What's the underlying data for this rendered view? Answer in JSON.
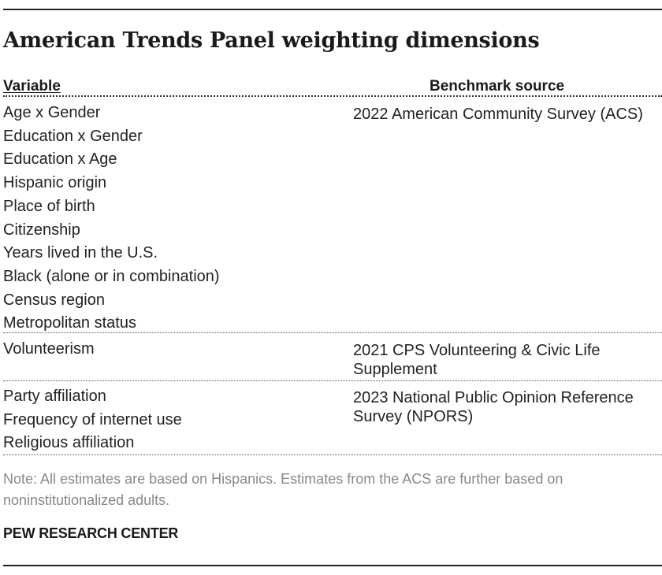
{
  "title": "American Trends Panel weighting dimensions",
  "headers": {
    "variable": "Variable",
    "source": "Benchmark source"
  },
  "groups": [
    {
      "variables": [
        "Age x Gender",
        "Education x Gender",
        "Education x Age",
        "Hispanic origin",
        "Place of birth",
        "Citizenship",
        "Years lived in the U.S.",
        "Black (alone or in combination)",
        "Census region",
        "Metropolitan status"
      ],
      "source": "2022 American Community Survey (ACS)"
    },
    {
      "variables": [
        "Volunteerism"
      ],
      "source": "2021 CPS Volunteering & Civic Life Supplement"
    },
    {
      "variables": [
        "Party affiliation",
        "Frequency of internet use",
        "Religious affiliation"
      ],
      "source": "2023 National Public Opinion Reference Survey (NPORS)"
    }
  ],
  "note": "Note: All estimates are based on Hispanics. Estimates from the ACS are further based on noninstitutionalized adults.",
  "org": "PEW RESEARCH CENTER"
}
